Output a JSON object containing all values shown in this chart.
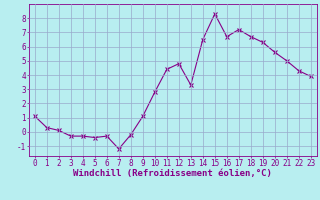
{
  "x": [
    0,
    1,
    2,
    3,
    4,
    5,
    6,
    7,
    8,
    9,
    10,
    11,
    12,
    13,
    14,
    15,
    16,
    17,
    18,
    19,
    20,
    21,
    22,
    23
  ],
  "y": [
    1.1,
    0.3,
    0.1,
    -0.3,
    -0.3,
    -0.4,
    -0.3,
    -1.2,
    -0.2,
    1.1,
    2.8,
    4.4,
    4.8,
    3.3,
    6.5,
    8.3,
    6.7,
    7.2,
    6.7,
    6.3,
    5.6,
    5.0,
    4.3,
    3.9
  ],
  "line_color": "#880088",
  "marker": "x",
  "marker_size": 3,
  "bg_color": "#b8eef0",
  "grid_color": "#99aacc",
  "xlabel": "Windchill (Refroidissement éolien,°C)",
  "xlim": [
    -0.5,
    23.5
  ],
  "ylim": [
    -1.7,
    9.0
  ],
  "yticks": [
    -1,
    0,
    1,
    2,
    3,
    4,
    5,
    6,
    7,
    8
  ],
  "xticks": [
    0,
    1,
    2,
    3,
    4,
    5,
    6,
    7,
    8,
    9,
    10,
    11,
    12,
    13,
    14,
    15,
    16,
    17,
    18,
    19,
    20,
    21,
    22,
    23
  ],
  "tick_color": "#880088",
  "label_color": "#880088",
  "spine_color": "#880088",
  "tick_fontsize": 5.5,
  "xlabel_fontsize": 6.5
}
